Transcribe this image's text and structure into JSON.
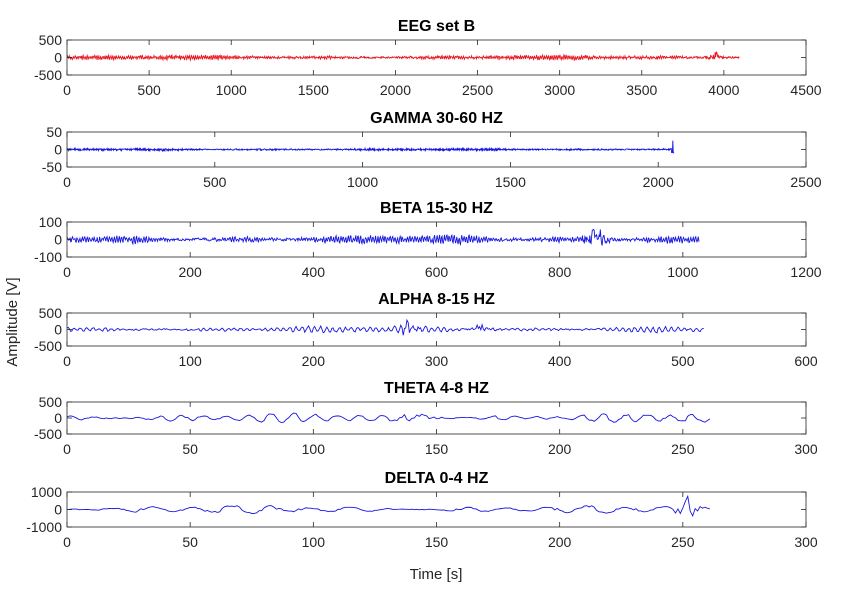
{
  "figure": {
    "ylabel": "Amplitude [V]",
    "xlabel": "Time [s]"
  },
  "colors": {
    "raw_signal": "#e8141c",
    "band_signal": "#1616e0",
    "axis": "#262626"
  },
  "chart_data": [
    {
      "type": "line",
      "title": "EEG set B",
      "color": "#e8141c",
      "xlim": [
        0,
        4500
      ],
      "ylim": [
        -500,
        500
      ],
      "xticks": [
        0,
        500,
        1000,
        1500,
        2000,
        2500,
        3000,
        3500,
        4000,
        4500
      ],
      "yticks": [
        -500,
        0,
        500
      ],
      "xtick_labels": [
        "0",
        "500",
        "1000",
        "1500",
        "2000",
        "2500",
        "3000",
        "3500",
        "4000",
        "4500"
      ],
      "ytick_labels": [
        "-500",
        "0",
        "500"
      ],
      "samples": 4097,
      "amplitude": 60,
      "noise": 0.55,
      "osc_period": 12,
      "baseline": 0,
      "bursts": [
        {
          "at": 3950,
          "amp": 110,
          "width": 35
        }
      ]
    },
    {
      "type": "line",
      "title": "GAMMA 30-60 HZ",
      "color": "#1616e0",
      "xlim": [
        0,
        2500
      ],
      "ylim": [
        -50,
        50
      ],
      "xticks": [
        0,
        500,
        1000,
        1500,
        2000,
        2500
      ],
      "yticks": [
        -50,
        0,
        50
      ],
      "xtick_labels": [
        "0",
        "500",
        "1000",
        "1500",
        "2000",
        "2500"
      ],
      "ytick_labels": [
        "-50",
        "0",
        "50"
      ],
      "samples": 2055,
      "amplitude": 3,
      "noise": 0.7,
      "osc_period": 3,
      "baseline": 0,
      "bursts": [
        {
          "at": 2050,
          "amp": 30,
          "width": 4
        }
      ]
    },
    {
      "type": "line",
      "title": "BETA 15-30 HZ",
      "color": "#1616e0",
      "xlim": [
        0,
        1200
      ],
      "ylim": [
        -100,
        100
      ],
      "xticks": [
        0,
        200,
        400,
        600,
        800,
        1000,
        1200
      ],
      "yticks": [
        -100,
        0,
        100
      ],
      "xtick_labels": [
        "0",
        "200",
        "400",
        "600",
        "800",
        "1000",
        "1200"
      ],
      "ytick_labels": [
        "-100",
        "0",
        "100"
      ],
      "samples": 1028,
      "amplitude": 26,
      "noise": 0.35,
      "osc_period": 4,
      "baseline": 0,
      "bursts": [
        {
          "at": 860,
          "amp": 35,
          "width": 25
        }
      ]
    },
    {
      "type": "line",
      "title": "ALPHA 8-15 HZ",
      "color": "#1616e0",
      "xlim": [
        0,
        600
      ],
      "ylim": [
        -500,
        500
      ],
      "xticks": [
        0,
        100,
        200,
        300,
        400,
        500,
        600
      ],
      "yticks": [
        -500,
        0,
        500
      ],
      "xtick_labels": [
        "0",
        "100",
        "200",
        "300",
        "400",
        "500",
        "600"
      ],
      "ytick_labels": [
        "-500",
        "0",
        "500"
      ],
      "samples": 518,
      "amplitude": 95,
      "noise": 0.3,
      "osc_period": 5,
      "baseline": 0,
      "bursts": [
        {
          "at": 277,
          "amp": 150,
          "width": 8
        },
        {
          "at": 335,
          "amp": 90,
          "width": 10
        }
      ]
    },
    {
      "type": "line",
      "title": "THETA 4-8 HZ",
      "color": "#1616e0",
      "xlim": [
        0,
        300
      ],
      "ylim": [
        -500,
        500
      ],
      "xticks": [
        0,
        50,
        100,
        150,
        200,
        250,
        300
      ],
      "yticks": [
        -500,
        0,
        500
      ],
      "xtick_labels": [
        "0",
        "50",
        "100",
        "150",
        "200",
        "250",
        "300"
      ],
      "ytick_labels": [
        "-500",
        "0",
        "500"
      ],
      "samples": 262,
      "amplitude": 130,
      "noise": 0.2,
      "osc_period": 9,
      "baseline": 0,
      "bursts": [
        {
          "at": 142,
          "amp": 140,
          "width": 6
        }
      ]
    },
    {
      "type": "line",
      "title": "DELTA 0-4 HZ",
      "color": "#1616e0",
      "xlim": [
        0,
        300
      ],
      "ylim": [
        -1000,
        1000
      ],
      "xticks": [
        0,
        50,
        100,
        150,
        200,
        250,
        300
      ],
      "yticks": [
        -1000,
        0,
        1000
      ],
      "xtick_labels": [
        "0",
        "50",
        "100",
        "150",
        "200",
        "250",
        "300"
      ],
      "ytick_labels": [
        "-1000",
        "0",
        "1000"
      ],
      "samples": 262,
      "amplitude": 200,
      "noise": 0.15,
      "osc_period": 16,
      "baseline": 0,
      "bursts": [
        {
          "at": 252,
          "amp": 600,
          "width": 4
        }
      ]
    }
  ]
}
